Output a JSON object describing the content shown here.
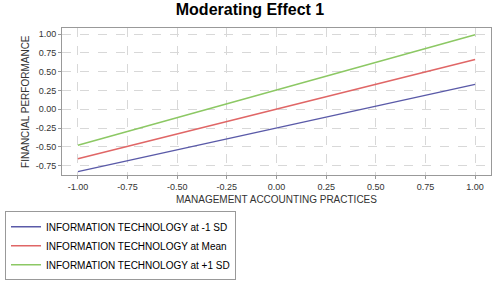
{
  "chart_data": {
    "type": "line",
    "title": "Moderating Effect 1",
    "x_label": "MANAGEMENT ACCOUNTING PRACTICES",
    "y_label": "FINANCIAL PERFORMANCE",
    "x": [
      -1,
      1
    ],
    "series": [
      {
        "name": "INFORMATION TECHNOLOGY at -1 SD",
        "color": "#5a5aa8",
        "values": [
          -0.83,
          0.33
        ]
      },
      {
        "name": "INFORMATION TECHNOLOGY at Mean",
        "color": "#e06666",
        "values": [
          -0.66,
          0.66
        ]
      },
      {
        "name": "INFORMATION TECHNOLOGY at +1 SD",
        "color": "#8cc864",
        "values": [
          -0.48,
          0.99
        ]
      }
    ],
    "xlim": [
      -1.08,
      1.08
    ],
    "xticks": [
      {
        "value": -1,
        "label": "-1.00"
      },
      {
        "value": -0.75,
        "label": "-0.75"
      },
      {
        "value": -0.5,
        "label": "-0.50"
      },
      {
        "value": -0.25,
        "label": "-0.25"
      },
      {
        "value": 0,
        "label": "0.00"
      },
      {
        "value": 0.25,
        "label": "0.25"
      },
      {
        "value": 0.5,
        "label": "0.50"
      },
      {
        "value": 0.75,
        "label": "0.75"
      },
      {
        "value": 1,
        "label": "1.00"
      }
    ],
    "ylim": [
      -0.88,
      1.08
    ],
    "yticks": [
      {
        "value": -0.75,
        "label": "-0.75"
      },
      {
        "value": -0.5,
        "label": "-0.50"
      },
      {
        "value": -0.25,
        "label": "-0.25"
      },
      {
        "value": 0,
        "label": "0.00"
      },
      {
        "value": 0.25,
        "label": "0.25"
      },
      {
        "value": 0.5,
        "label": "0.50"
      },
      {
        "value": 0.75,
        "label": "0.75"
      },
      {
        "value": 1,
        "label": "1.00"
      }
    ],
    "grid": true,
    "legend": "bottom",
    "line_style": "solid"
  }
}
